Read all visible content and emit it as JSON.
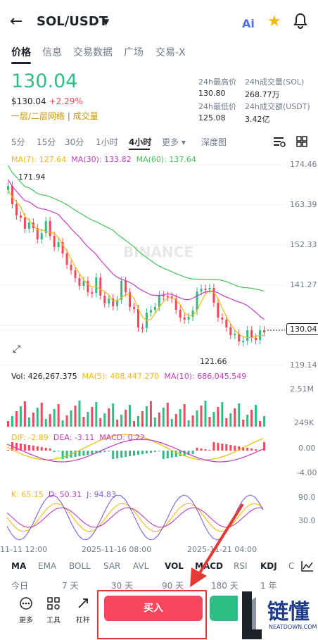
{
  "header": {
    "back_icon": "arrow-left-icon",
    "pair": "SOL/USDT",
    "ai": "Ai"
  },
  "tabs": [
    "价格",
    "信息",
    "交易数据",
    "广场",
    "交易-X"
  ],
  "price": {
    "last": "130.04",
    "usd": "$130.04",
    "change": "+2.29%",
    "network": "一层/二层网络",
    "volume_tag": "成交量"
  },
  "stats": [
    {
      "label": "24h最高价",
      "value": "130.80"
    },
    {
      "label": "24h成交量(SOL)",
      "value": "268.77万"
    },
    {
      "label": "24h最低价",
      "value": "125.08"
    },
    {
      "label": "24h成交额(USDT)",
      "value": "3.42亿"
    }
  ],
  "timeframes": [
    "5分",
    "15分",
    "30分",
    "1小时",
    "4小时",
    "更多 ▾",
    "深度图"
  ],
  "ma_line": {
    "ma7": "MA(7): 127.64",
    "ma30": "MA(30): 133.82",
    "ma60": "MA(60): 137.64"
  },
  "price_axis": [
    "174.46",
    "163.39",
    "152.33",
    "141.27",
    "119.14"
  ],
  "current_price": "130.04",
  "high_mark": "171.94",
  "low_mark": "121.66",
  "watermark": "BINANCE",
  "vol_line": {
    "vol": "Vol: 426,267.375",
    "ma5": "MA(5): 408,447.270",
    "ma10": "MA(10): 686,045.549"
  },
  "vol_axis": [
    "2.51M",
    "249K"
  ],
  "macd_line": {
    "dif": "DIF: -2.89",
    "dea": "DEA: -3.11",
    "macd": "MACD: 0.22"
  },
  "macd_axis": [
    "0.00",
    "-4.00"
  ],
  "kdj_line": {
    "k": "K: 65.15",
    "d": "D: 50.31",
    "j": "J: 94.83"
  },
  "kdj_axis": [
    "90.0",
    "30.0"
  ],
  "dates": [
    "11-11 12:00",
    "2025-11-16 08:00",
    "2025-11-21 04:00"
  ],
  "indicator_tabs": [
    "MA",
    "EMA",
    "BOLL",
    "SAR",
    "AVL",
    "VOL",
    "MACD",
    "RSI",
    "KDJ",
    "C"
  ],
  "periods": [
    "今日",
    "7 天",
    "30 天",
    "90 天",
    "180 天",
    "1 年"
  ],
  "tools": [
    "更多",
    "工具",
    "杠杆"
  ],
  "buy": "买入",
  "logo": {
    "text": "链懂",
    "sub": "NEATDOWN.COM"
  },
  "colors": {
    "up": "#2ebd85",
    "down": "#f6465d",
    "ma7": "#f0b90b",
    "ma30": "#c23cbf",
    "ma60": "#41c35a"
  }
}
